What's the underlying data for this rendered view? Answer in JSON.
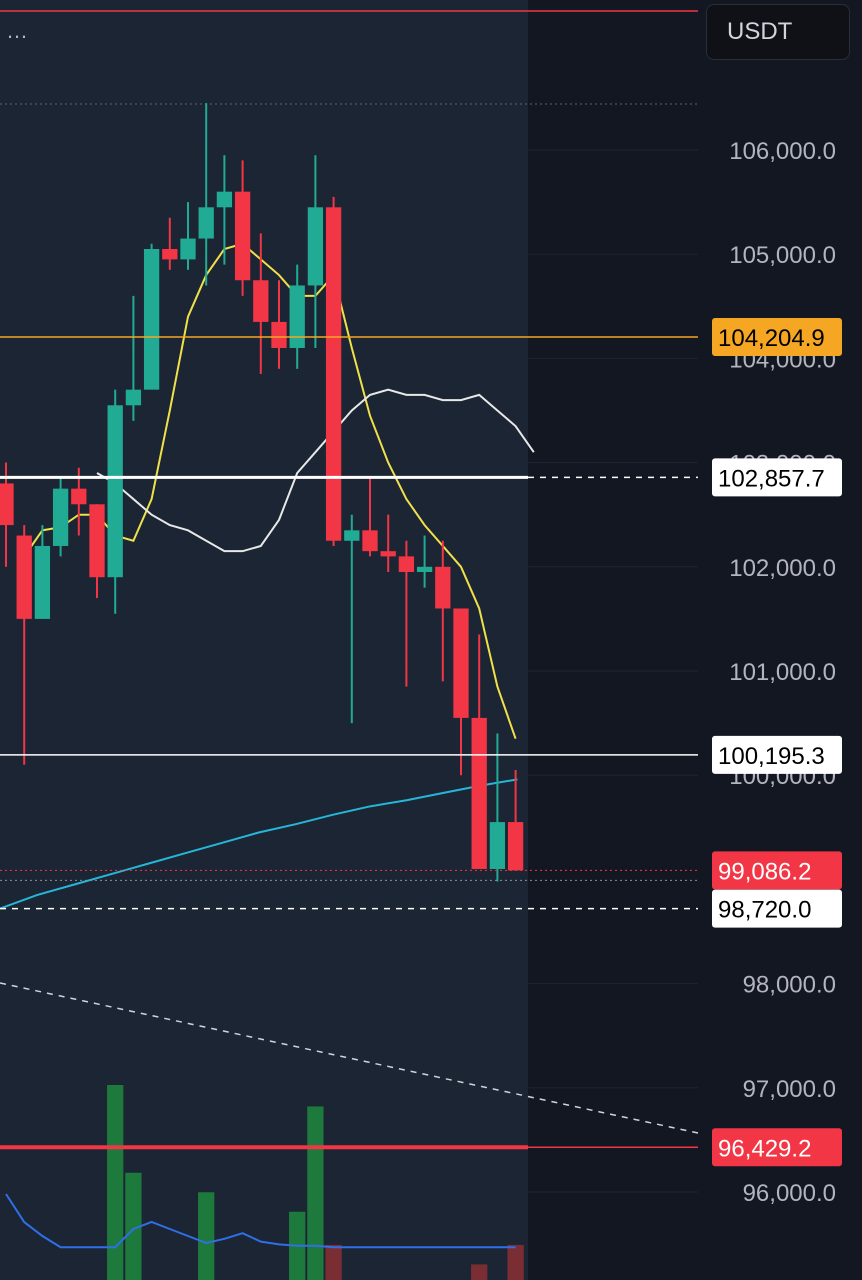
{
  "header": {
    "currency": "USDT",
    "more_icon": "more-horizontal-icon"
  },
  "colors": {
    "background": "#131722",
    "highlight_region": "#1b2533",
    "up": "#22ab94",
    "down": "#f23645",
    "ma_fast": "#f0e04a",
    "ma_mid": "#e8e8e8",
    "ma_slow": "#27b6d8",
    "level_orange": "#f5a623",
    "level_red": "#f23645",
    "volume_up": "#1e7a3c",
    "volume_down": "#7a2e33",
    "volume_ma": "#2f6fe8"
  },
  "chart_data": {
    "type": "candlestick",
    "y_axis": {
      "min": 95800,
      "max": 106500,
      "ticks": [
        "106,000.0",
        "105,000.0",
        "104,000.0",
        "103,000.0",
        "102,000.0",
        "101,000.0",
        "100,000.0",
        "98,000.0",
        "97,000.0",
        "96,000.0"
      ],
      "tick_values": [
        106000,
        105000,
        104000,
        103000,
        102000,
        101000,
        100000,
        98000,
        97000,
        96000
      ]
    },
    "candles": [
      {
        "o": 102800,
        "h": 103000,
        "l": 102000,
        "c": 102400
      },
      {
        "o": 102300,
        "h": 102400,
        "l": 100100,
        "c": 101500
      },
      {
        "o": 101500,
        "h": 102400,
        "l": 101500,
        "c": 102200
      },
      {
        "o": 102200,
        "h": 102850,
        "l": 102100,
        "c": 102750
      },
      {
        "o": 102750,
        "h": 102950,
        "l": 102300,
        "c": 102600
      },
      {
        "o": 102600,
        "h": 102600,
        "l": 101700,
        "c": 101900
      },
      {
        "o": 101900,
        "h": 103700,
        "l": 101550,
        "c": 103550
      },
      {
        "o": 103550,
        "h": 104600,
        "l": 103400,
        "c": 103700
      },
      {
        "o": 103700,
        "h": 105100,
        "l": 103700,
        "c": 105050
      },
      {
        "o": 105050,
        "h": 105350,
        "l": 104850,
        "c": 104950
      },
      {
        "o": 104950,
        "h": 105500,
        "l": 104850,
        "c": 105150
      },
      {
        "o": 105150,
        "h": 106450,
        "l": 104700,
        "c": 105450
      },
      {
        "o": 105450,
        "h": 105950,
        "l": 104900,
        "c": 105600
      },
      {
        "o": 105600,
        "h": 105900,
        "l": 104600,
        "c": 104750
      },
      {
        "o": 104750,
        "h": 105200,
        "l": 103850,
        "c": 104350
      },
      {
        "o": 104350,
        "h": 104750,
        "l": 103900,
        "c": 104100
      },
      {
        "o": 104100,
        "h": 104900,
        "l": 103900,
        "c": 104700
      },
      {
        "o": 104700,
        "h": 105950,
        "l": 104100,
        "c": 105450
      },
      {
        "o": 105450,
        "h": 105550,
        "l": 102200,
        "c": 102250
      },
      {
        "o": 102250,
        "h": 102500,
        "l": 100500,
        "c": 102350
      },
      {
        "o": 102350,
        "h": 102850,
        "l": 102100,
        "c": 102150
      },
      {
        "o": 102150,
        "h": 102500,
        "l": 101950,
        "c": 102100
      },
      {
        "o": 102100,
        "h": 102250,
        "l": 100850,
        "c": 101950
      },
      {
        "o": 101950,
        "h": 102300,
        "l": 101800,
        "c": 102000
      },
      {
        "o": 102000,
        "h": 102250,
        "l": 100900,
        "c": 101600
      },
      {
        "o": 101600,
        "h": 101600,
        "l": 100000,
        "c": 100550
      },
      {
        "o": 100550,
        "h": 101350,
        "l": 99100,
        "c": 99100
      },
      {
        "o": 99100,
        "h": 100400,
        "l": 98980,
        "c": 99550
      },
      {
        "o": 99550,
        "h": 100050,
        "l": 99086,
        "c": 99086
      }
    ],
    "ma_fast": [
      102100,
      102350,
      102380,
      102500,
      102500,
      102300,
      102250,
      102650,
      103500,
      104400,
      104800,
      105050,
      105100,
      104950,
      104800,
      104600,
      104600,
      104800,
      104100,
      103450,
      103000,
      102650,
      102400,
      102200,
      102000,
      101600,
      100850,
      100350
    ],
    "ma_mid": [
      102900,
      102800,
      102650,
      102500,
      102400,
      102350,
      102250,
      102150,
      102150,
      102200,
      102450,
      102900,
      103100,
      103300,
      103500,
      103650,
      103700,
      103650,
      103650,
      103600,
      103600,
      103650,
      103500,
      103350,
      103100
    ],
    "ma_slow": [
      98720,
      98850,
      98950,
      99050,
      99150,
      99250,
      99350,
      99450,
      99530,
      99620,
      99700,
      99760,
      99830,
      99900,
      99960
    ],
    "levels": [
      {
        "label": "104,204.9",
        "value": 104204.9
      },
      {
        "label": "102,857.7",
        "value": 102857.7
      },
      {
        "label": "100,195.3",
        "value": 100195.3
      },
      {
        "label": "99,086.2",
        "value": 99086.2
      },
      {
        "label": "98,720.0",
        "value": 98720.0
      },
      {
        "label": "96,429.2",
        "value": 96429.2
      }
    ],
    "volume": [
      0,
      0,
      0,
      0,
      0,
      0,
      100,
      55,
      0,
      0,
      0,
      45,
      0,
      0,
      0,
      0,
      35,
      89,
      18,
      0,
      0,
      0,
      0,
      0,
      0,
      0,
      8,
      0,
      18,
      0
    ],
    "volume_ma": [
      40,
      20,
      10,
      2,
      2,
      2,
      2,
      15,
      20,
      15,
      10,
      5,
      8,
      12,
      6,
      4,
      3,
      3,
      2,
      2,
      2,
      2,
      2,
      2,
      2,
      2,
      2,
      2,
      2
    ]
  }
}
